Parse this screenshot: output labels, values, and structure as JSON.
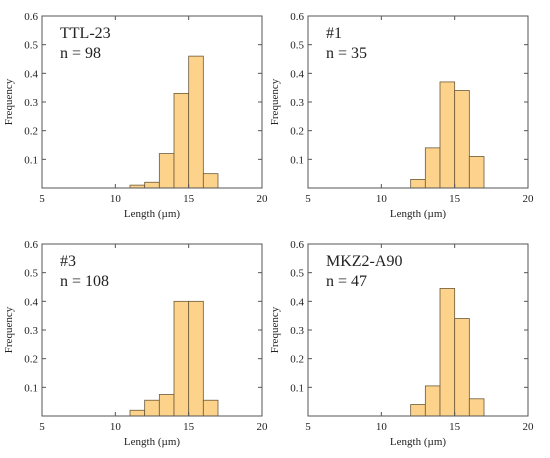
{
  "colors": {
    "bar_fill": "#fdd28a",
    "bar_stroke": "#6b5a3a",
    "axis": "#555555"
  },
  "chart_data": [
    {
      "type": "bar",
      "title": "TTL-23",
      "n_label": "n = 98",
      "xlabel": "Length (µm)",
      "ylabel": "Frequency",
      "xlim": [
        5,
        20
      ],
      "ylim": [
        0,
        0.6
      ],
      "xticks": [
        "5",
        "10",
        "15",
        "20"
      ],
      "yticks": [
        "0.1",
        "0.2",
        "0.3",
        "0.4",
        "0.5",
        "0.6"
      ],
      "bin_width": 1,
      "bins": [
        11,
        12,
        13,
        14,
        15,
        16
      ],
      "values": [
        0.01,
        0.02,
        0.12,
        0.33,
        0.46,
        0.05
      ]
    },
    {
      "type": "bar",
      "title": "#1",
      "n_label": "n = 35",
      "xlabel": "Length (µm)",
      "ylabel": "Frequency",
      "xlim": [
        5,
        20
      ],
      "ylim": [
        0,
        0.6
      ],
      "xticks": [
        "5",
        "10",
        "15",
        "20"
      ],
      "yticks": [
        "0.1",
        "0.2",
        "0.3",
        "0.4",
        "0.5",
        "0.6"
      ],
      "bin_width": 1,
      "bins": [
        12,
        13,
        14,
        15,
        16
      ],
      "values": [
        0.03,
        0.14,
        0.37,
        0.34,
        0.11
      ]
    },
    {
      "type": "bar",
      "title": "#3",
      "n_label": "n = 108",
      "xlabel": "Length (µm)",
      "ylabel": "Frequency",
      "xlim": [
        5,
        20
      ],
      "ylim": [
        0,
        0.6
      ],
      "xticks": [
        "5",
        "10",
        "15",
        "20"
      ],
      "yticks": [
        "0.1",
        "0.2",
        "0.3",
        "0.4",
        "0.5",
        "0.6"
      ],
      "bin_width": 1,
      "bins": [
        11,
        12,
        13,
        14,
        15,
        16
      ],
      "values": [
        0.02,
        0.055,
        0.075,
        0.4,
        0.4,
        0.055
      ]
    },
    {
      "type": "bar",
      "title": "MKZ2-A90",
      "n_label": "n = 47",
      "xlabel": "Length (µm)",
      "ylabel": "Frequency",
      "xlim": [
        5,
        20
      ],
      "ylim": [
        0,
        0.6
      ],
      "xticks": [
        "5",
        "10",
        "15",
        "20"
      ],
      "yticks": [
        "0.1",
        "0.2",
        "0.3",
        "0.4",
        "0.5",
        "0.6"
      ],
      "bin_width": 1,
      "bins": [
        12,
        13,
        14,
        15,
        16
      ],
      "values": [
        0.04,
        0.105,
        0.445,
        0.34,
        0.06
      ]
    }
  ]
}
